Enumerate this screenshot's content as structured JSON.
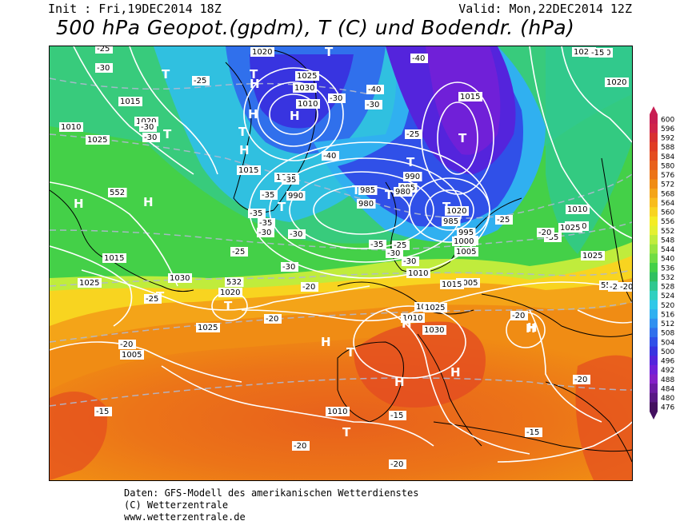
{
  "header": {
    "init": "Init : Fri,19DEC2014 18Z",
    "valid": "Valid: Mon,22DEC2014 12Z",
    "title": "500 hPa Geopot.(gpdm), T (C) und Bodendr. (hPa)"
  },
  "credits": {
    "line1": "Daten: GFS-Modell des amerikanischen Wetterdienstes",
    "line2": "(C) Wetterzentrale",
    "line3": "www.wetterzentrale.de"
  },
  "legend": {
    "labels": [
      "600",
      "596",
      "592",
      "588",
      "584",
      "580",
      "576",
      "572",
      "568",
      "564",
      "560",
      "556",
      "552",
      "548",
      "544",
      "540",
      "536",
      "532",
      "528",
      "524",
      "520",
      "516",
      "512",
      "508",
      "504",
      "500",
      "496",
      "492",
      "488",
      "484",
      "480",
      "476"
    ],
    "colors": [
      "#c81e52",
      "#d0244a",
      "#d83030",
      "#e03c24",
      "#e44c20",
      "#e8601c",
      "#ec7418",
      "#f08c14",
      "#f4a418",
      "#f8bc1c",
      "#f8d420",
      "#f4ec24",
      "#e4f030",
      "#c0ec3c",
      "#98e440",
      "#70dc44",
      "#44d048",
      "#30c060",
      "#30c890",
      "#30d0c0",
      "#30c8e8",
      "#30b0f0",
      "#3090f0",
      "#3070ec",
      "#3050e8",
      "#3834e0",
      "#5424dc",
      "#7020d8",
      "#8420c8",
      "#6c1ca4",
      "#581884",
      "#441060"
    ]
  },
  "pressure_labels": [
    "1020",
    "1025",
    "1030",
    "1010",
    "1015",
    "1020",
    "1025",
    "1010",
    "1015",
    "1005",
    "990",
    "985",
    "980",
    "990",
    "985",
    "980",
    "985",
    "1000",
    "1005",
    "1010",
    "1020",
    "1025",
    "1030",
    "1015",
    "1025",
    "1030",
    "1020",
    "1025",
    "1005",
    "1010",
    "1015",
    "1025",
    "1030",
    "1025",
    "1005",
    "1010",
    "1015",
    "1020",
    "995",
    "1000",
    "1020",
    "1025",
    "1010",
    "1015",
    "552",
    "532",
    "552"
  ],
  "temp_labels": [
    "-25",
    "-30",
    "-25",
    "-30",
    "-30",
    "-30",
    "-40",
    "-40",
    "-40",
    "-35",
    "-35",
    "-35",
    "-35",
    "-30",
    "-30",
    "-30",
    "-35",
    "-25",
    "-30",
    "-35",
    "-30",
    "-25",
    "-25",
    "-20",
    "-20",
    "-20",
    "-20",
    "-25",
    "-20",
    "-25",
    "-15",
    "-15",
    "-20",
    "-20",
    "-15",
    "-15",
    "-20",
    "-20",
    "-25",
    "-30"
  ],
  "highs": [
    "H",
    "H",
    "H",
    "H",
    "H",
    "H",
    "H",
    "H",
    "H",
    "H",
    "H",
    "H"
  ],
  "lows": [
    "T",
    "T",
    "T",
    "T",
    "T",
    "T",
    "T",
    "T",
    "T",
    "T",
    "T",
    "T",
    "T",
    "T",
    "T"
  ]
}
